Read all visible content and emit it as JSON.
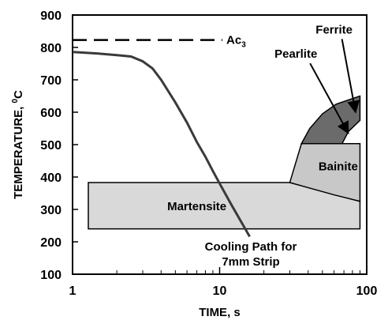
{
  "chart_data": {
    "type": "line",
    "title": "",
    "xlabel": "TIME, s",
    "ylabel_main": "TEMPERATURE, ",
    "ylabel_sup": "0",
    "ylabel_unit": "C",
    "x_scale": "log",
    "xlim": [
      1,
      100
    ],
    "ylim": [
      100,
      900
    ],
    "x_ticks": [
      "1",
      "10",
      "100"
    ],
    "y_ticks": [
      "100",
      "200",
      "300",
      "400",
      "500",
      "600",
      "700",
      "800",
      "900"
    ],
    "grid": false,
    "ac3": {
      "label": "Ac",
      "subscript": "3",
      "temperature": 823
    },
    "regions": [
      {
        "name": "Martensite",
        "color": "#d9d9d9",
        "label_at": {
          "time": 7,
          "temp": 310
        },
        "polygon": [
          {
            "time": 1.28,
            "temp": 383
          },
          {
            "time": 30,
            "temp": 383
          },
          {
            "time": 90,
            "temp": 325
          },
          {
            "time": 90,
            "temp": 240
          },
          {
            "time": 1.28,
            "temp": 240
          }
        ]
      },
      {
        "name": "Bainite",
        "color": "#c8c8c8",
        "label_at": {
          "time": 64,
          "temp": 433
        },
        "polygon": [
          {
            "time": 36,
            "temp": 503
          },
          {
            "time": 90,
            "temp": 503
          },
          {
            "time": 90,
            "temp": 325
          },
          {
            "time": 60,
            "temp": 345
          },
          {
            "time": 30,
            "temp": 383
          }
        ]
      },
      {
        "name": "Pearlite",
        "color": "#6b6b6b",
        "label_at": {
          "time": 33,
          "temp": 780
        },
        "polygon": [
          {
            "time": 36,
            "temp": 503
          },
          {
            "time": 41,
            "temp": 550
          },
          {
            "time": 50,
            "temp": 595
          },
          {
            "time": 62,
            "temp": 625
          },
          {
            "time": 90,
            "temp": 650
          },
          {
            "time": 90,
            "temp": 575
          },
          {
            "time": 75,
            "temp": 540
          },
          {
            "time": 68,
            "temp": 503
          }
        ]
      }
    ],
    "ferrite_label": {
      "text": "Ferrite",
      "time": 60,
      "temp": 855,
      "arrow_to": {
        "time": 84,
        "temp": 600
      }
    },
    "pearlite_arrow_to": {
      "time": 75,
      "temp": 535
    },
    "series": [
      {
        "name": "Cooling Path for 7mm Strip",
        "label_line1": "Cooling Path for",
        "label_line2": "7mm Strip",
        "color": "#3a3a3a",
        "points": [
          {
            "time": 1.0,
            "temp": 786
          },
          {
            "time": 1.5,
            "temp": 781
          },
          {
            "time": 2.0,
            "temp": 776
          },
          {
            "time": 2.5,
            "temp": 772
          },
          {
            "time": 3.0,
            "temp": 757
          },
          {
            "time": 3.5,
            "temp": 735
          },
          {
            "time": 4.0,
            "temp": 700
          },
          {
            "time": 5.0,
            "temp": 630
          },
          {
            "time": 6.0,
            "temp": 568
          },
          {
            "time": 7.0,
            "temp": 508
          },
          {
            "time": 8.0,
            "temp": 463
          },
          {
            "time": 9.0,
            "temp": 418
          },
          {
            "time": 10.0,
            "temp": 380
          },
          {
            "time": 12.0,
            "temp": 315
          },
          {
            "time": 14.0,
            "temp": 262
          },
          {
            "time": 16.0,
            "temp": 216
          }
        ]
      }
    ]
  }
}
